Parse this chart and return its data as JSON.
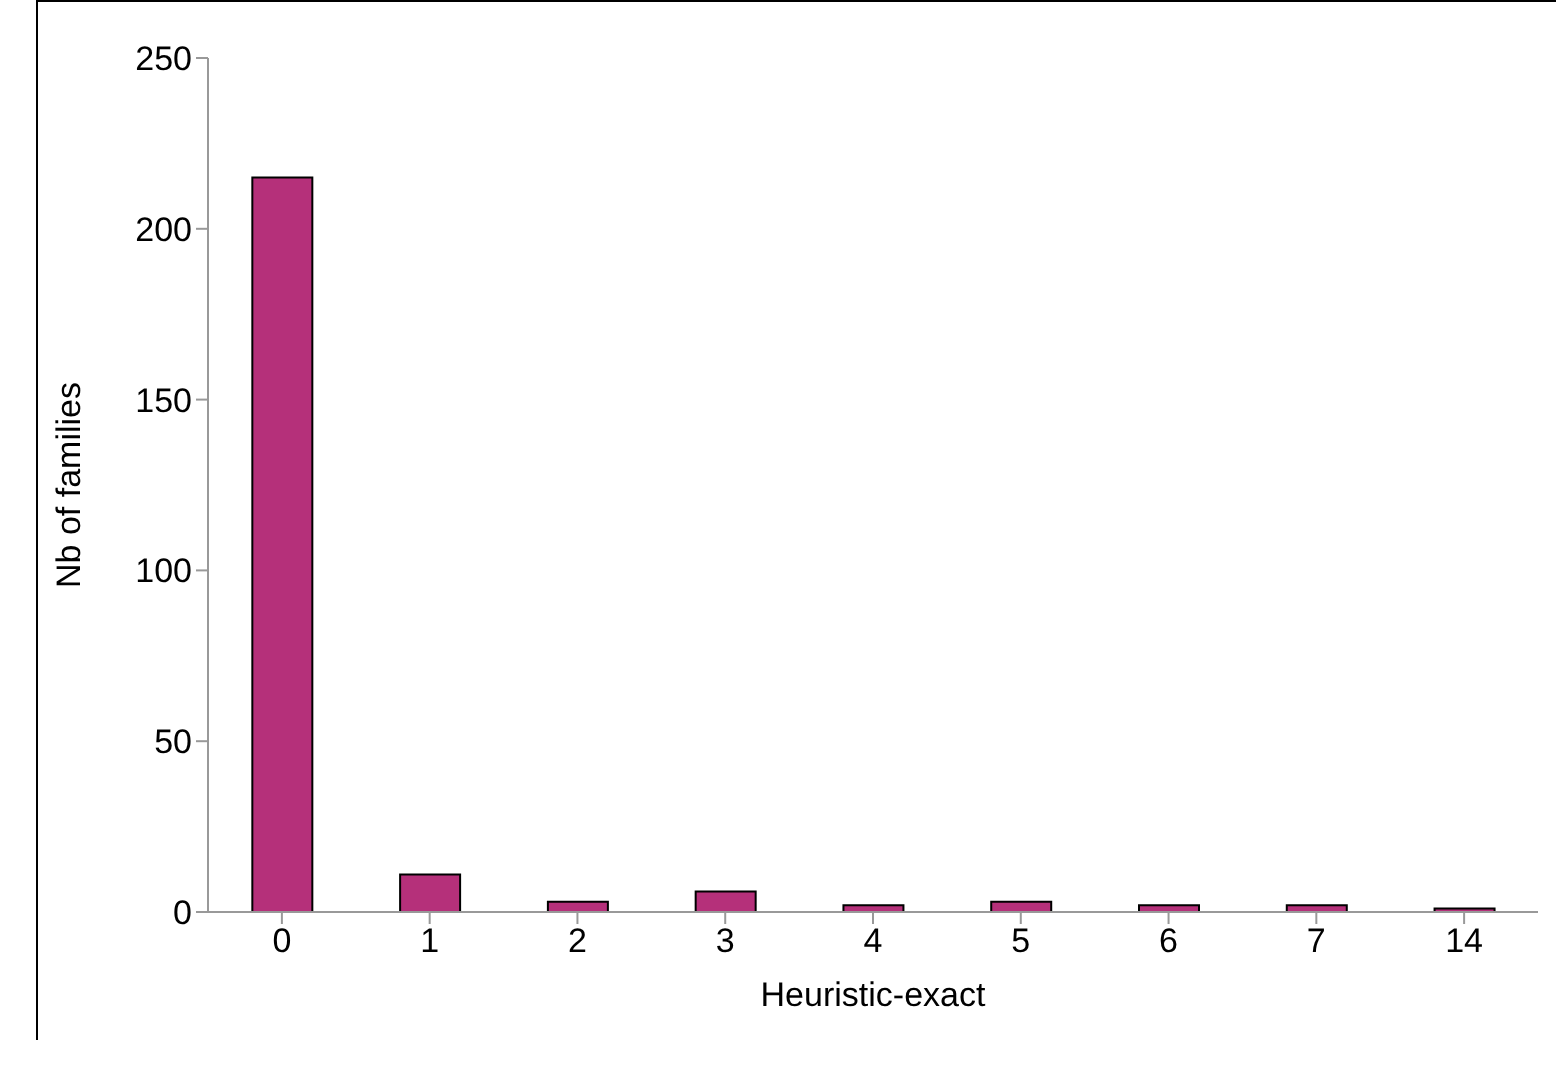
{
  "chart_data": {
    "type": "bar",
    "xlabel": "Heuristic-exact",
    "ylabel": "Nb of families",
    "categories": [
      "0",
      "1",
      "2",
      "3",
      "4",
      "5",
      "6",
      "7",
      "14"
    ],
    "values": [
      215,
      11,
      3,
      6,
      2,
      3,
      2,
      2,
      1
    ],
    "color": "#b5307a",
    "ylim": [
      0,
      250
    ],
    "yticks": [
      0,
      50,
      100,
      150,
      200,
      250
    ],
    "grid": false,
    "legend": false
  }
}
